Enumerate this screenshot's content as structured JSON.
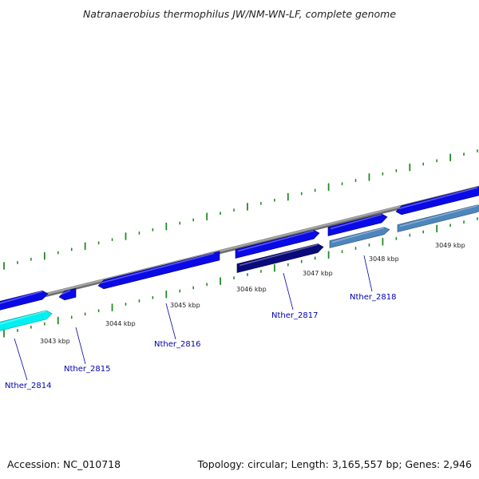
{
  "title": "Natranaerobius thermophilus JW/NM-WN-LF, complete genome",
  "footer": {
    "accession": "Accession: NC_010718",
    "stats": "Topology: circular; Length: 3,165,557 bp; Genes: 2,946"
  },
  "scale": {
    "kbp_labels": [
      "3043 kbp",
      "3044 kbp",
      "3045 kbp",
      "3046 kbp",
      "3047 kbp",
      "3048 kbp",
      "3049 kbp"
    ]
  },
  "genes": [
    {
      "name": "Nther_2814",
      "color": "#00f0f0"
    },
    {
      "name": "Nther_2815",
      "color": "#0a0ae6"
    },
    {
      "name": "Nther_2816",
      "color": "#0a0ae6"
    },
    {
      "name": "Nther_2817",
      "color": "#0a0a7a"
    },
    {
      "name": "Nther_2818",
      "color": "#4d85bd"
    }
  ],
  "colors": {
    "backbone": "#888888",
    "forward_cds": "#0a0ae6",
    "tick": "#228b22"
  }
}
